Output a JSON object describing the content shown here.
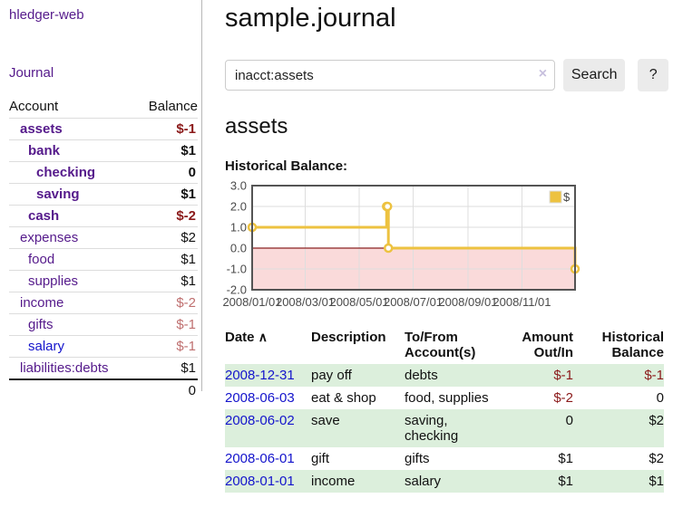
{
  "app": {
    "brand": "hledger-web",
    "nav": {
      "journal": "Journal"
    }
  },
  "sidebar": {
    "headers": {
      "account": "Account",
      "balance": "Balance"
    },
    "rows": [
      {
        "name": "assets",
        "balance": "$-1"
      },
      {
        "name": "bank",
        "balance": "$1"
      },
      {
        "name": "checking",
        "balance": "0"
      },
      {
        "name": "saving",
        "balance": "$1"
      },
      {
        "name": "cash",
        "balance": "$-2"
      },
      {
        "name": "expenses",
        "balance": "$2"
      },
      {
        "name": "food",
        "balance": "$1"
      },
      {
        "name": "supplies",
        "balance": "$1"
      },
      {
        "name": "income",
        "balance": "$-2"
      },
      {
        "name": "gifts",
        "balance": "$-1"
      },
      {
        "name": "salary",
        "balance": "$-1"
      },
      {
        "name": "liabilities:debts",
        "balance": "$1"
      }
    ],
    "total": "0"
  },
  "main": {
    "title": "sample.journal",
    "search": {
      "value": "inacct:assets",
      "clear_icon": "×",
      "button": "Search",
      "help": "?"
    },
    "account_heading": "assets",
    "chart_label": "Historical Balance:"
  },
  "chart_data": {
    "type": "line",
    "style": "step",
    "title": "Historical Balance",
    "series": [
      {
        "name": "$",
        "points": [
          [
            "2008-01-01",
            1
          ],
          [
            "2008-06-01",
            2
          ],
          [
            "2008-06-02",
            2
          ],
          [
            "2008-06-03",
            0
          ],
          [
            "2008-12-31",
            -1
          ]
        ]
      }
    ],
    "x_range": [
      "2008-01-01",
      "2008-12-31"
    ],
    "ylim": [
      -2,
      3
    ],
    "yticks": [
      "3.0",
      "2.0",
      "1.0",
      "0.0",
      "-1.0",
      "-2.0"
    ],
    "xticks": [
      "2008/01/01",
      "2008/03/01",
      "2008/05/01",
      "2008/07/01",
      "2008/09/01",
      "2008/11/01"
    ],
    "grid": true,
    "legend_position": "top-right",
    "colors": {
      "series": "#edc240",
      "marker_fill": "#ffffff",
      "zero_line": "#8b2020",
      "negative_region": "#fadada",
      "grid": "#dedede",
      "border": "#545454",
      "tick_text": "#4a4a4a"
    }
  },
  "register": {
    "headers": {
      "date": "Date",
      "sort_icon": "∧",
      "description": "Description",
      "accounts": "To/From Account(s)",
      "amount": "Amount Out/In",
      "balance": "Historical Balance"
    },
    "rows": [
      {
        "date": "2008-12-31",
        "description": "pay off",
        "accounts": "debts",
        "amount": "$-1",
        "balance": "$-1"
      },
      {
        "date": "2008-06-03",
        "description": "eat & shop",
        "accounts": "food, supplies",
        "amount": "$-2",
        "balance": "0"
      },
      {
        "date": "2008-06-02",
        "description": "save",
        "accounts": "saving, checking",
        "amount": "0",
        "balance": "$2"
      },
      {
        "date": "2008-06-01",
        "description": "gift",
        "accounts": "gifts",
        "amount": "$1",
        "balance": "$2"
      },
      {
        "date": "2008-01-01",
        "description": "income",
        "accounts": "salary",
        "amount": "$1",
        "balance": "$1"
      }
    ]
  },
  "colors": {
    "link_visited": "#551a8b",
    "link": "#1414cc",
    "negative_strong": "#8b1a1a",
    "negative_muted": "#bf6f6f",
    "row_stripe": "#dcefdc"
  }
}
